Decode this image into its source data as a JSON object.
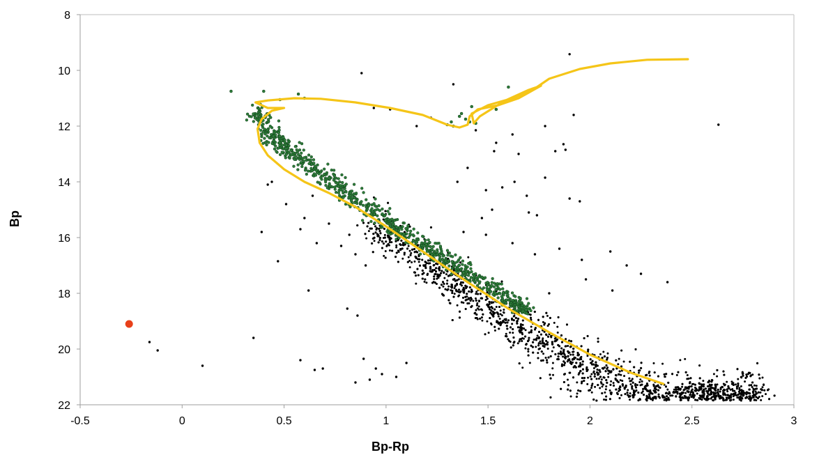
{
  "chart_data": {
    "type": "scatter",
    "title": "",
    "xlabel": "Bp-Rp",
    "ylabel": "Bp",
    "xlim": [
      -0.5,
      3
    ],
    "ylim": [
      8,
      22
    ],
    "y_inverted": true,
    "grid": false,
    "legend": "none",
    "xticks": [
      "-0.5",
      "0",
      "0.5",
      "1",
      "1.5",
      "2",
      "2.5",
      "3"
    ],
    "yticks": [
      "8",
      "10",
      "12",
      "14",
      "16",
      "18",
      "20",
      "22"
    ],
    "colors": {
      "field": "#000000",
      "members": "#2e7d3a",
      "isochrone": "#f5c518",
      "highlight": "#e8401a"
    },
    "series": [
      {
        "kind": "field_stars",
        "points": [
          [
            0.88,
            10.1
          ],
          [
            0.94,
            11.35
          ],
          [
            1.02,
            11.4
          ],
          [
            1.33,
            10.5
          ],
          [
            1.15,
            12.0
          ],
          [
            1.22,
            11.7
          ],
          [
            1.44,
            12.15
          ],
          [
            1.62,
            12.3
          ],
          [
            1.78,
            12.0
          ],
          [
            1.92,
            11.6
          ],
          [
            2.63,
            11.95
          ],
          [
            1.9,
            9.42
          ],
          [
            1.54,
            12.6
          ],
          [
            1.65,
            13.0
          ],
          [
            1.53,
            12.9
          ],
          [
            1.83,
            12.9
          ],
          [
            1.88,
            12.85
          ],
          [
            1.87,
            12.65
          ],
          [
            1.4,
            13.5
          ],
          [
            1.35,
            14.0
          ],
          [
            1.49,
            14.3
          ],
          [
            1.57,
            14.2
          ],
          [
            1.63,
            14.0
          ],
          [
            1.78,
            13.85
          ],
          [
            1.69,
            14.5
          ],
          [
            1.9,
            14.6
          ],
          [
            1.95,
            14.7
          ],
          [
            1.7,
            15.1
          ],
          [
            1.74,
            15.2
          ],
          [
            1.52,
            15.0
          ],
          [
            1.47,
            15.3
          ],
          [
            1.38,
            15.8
          ],
          [
            1.49,
            15.9
          ],
          [
            1.62,
            16.2
          ],
          [
            1.73,
            16.6
          ],
          [
            1.85,
            16.4
          ],
          [
            1.96,
            16.8
          ],
          [
            2.1,
            16.5
          ],
          [
            2.18,
            17.0
          ],
          [
            2.25,
            17.3
          ],
          [
            2.38,
            17.6
          ],
          [
            2.11,
            17.9
          ],
          [
            1.98,
            17.5
          ],
          [
            1.8,
            18.0
          ],
          [
            0.42,
            14.1
          ],
          [
            0.44,
            14.0
          ],
          [
            0.51,
            14.8
          ],
          [
            0.6,
            15.3
          ],
          [
            0.64,
            14.5
          ],
          [
            0.39,
            15.8
          ],
          [
            0.47,
            16.85
          ],
          [
            0.58,
            15.7
          ],
          [
            0.66,
            16.2
          ],
          [
            0.72,
            15.5
          ],
          [
            0.78,
            16.3
          ],
          [
            0.82,
            15.9
          ],
          [
            0.85,
            16.6
          ],
          [
            0.9,
            17.0
          ],
          [
            0.62,
            17.9
          ],
          [
            0.58,
            20.4
          ],
          [
            0.35,
            19.6
          ],
          [
            0.1,
            20.6
          ],
          [
            -0.12,
            20.05
          ],
          [
            -0.16,
            19.75
          ],
          [
            0.65,
            20.75
          ],
          [
            0.69,
            20.7
          ],
          [
            0.81,
            18.55
          ],
          [
            0.86,
            18.8
          ],
          [
            0.89,
            20.35
          ],
          [
            0.92,
            21.1
          ],
          [
            0.95,
            20.7
          ],
          [
            0.98,
            20.9
          ],
          [
            1.05,
            21.0
          ],
          [
            1.1,
            20.5
          ],
          [
            0.85,
            21.2
          ]
        ],
        "main_sequence_region": {
          "x_range": [
            0.85,
            2.85
          ],
          "y_range": [
            14.2,
            21.9
          ],
          "description": "dense band of faint field/cluster stars"
        }
      },
      {
        "kind": "cluster_members",
        "points": [
          [
            0.24,
            10.75
          ],
          [
            0.4,
            10.75
          ],
          [
            0.48,
            11.05
          ],
          [
            0.57,
            10.85
          ],
          [
            0.6,
            11.0
          ],
          [
            1.32,
            11.85
          ],
          [
            1.36,
            11.65
          ],
          [
            1.39,
            11.75
          ],
          [
            1.33,
            12.0
          ],
          [
            1.37,
            11.55
          ],
          [
            1.41,
            11.85
          ],
          [
            1.44,
            11.9
          ],
          [
            1.54,
            11.4
          ],
          [
            1.6,
            10.6
          ],
          [
            1.42,
            11.3
          ],
          [
            1.3,
            11.95
          ]
        ],
        "sequence_band": [
          [
            0.38,
            11.7
          ],
          [
            0.45,
            12.6
          ],
          [
            0.55,
            13.2
          ],
          [
            0.7,
            14.0
          ],
          [
            0.85,
            14.8
          ],
          [
            1.0,
            15.6
          ],
          [
            1.15,
            16.3
          ],
          [
            1.3,
            17.0
          ],
          [
            1.45,
            17.6
          ],
          [
            1.6,
            18.4
          ],
          [
            1.68,
            18.8
          ]
        ]
      },
      {
        "kind": "isochrone",
        "points": [
          [
            2.36,
            21.25
          ],
          [
            2.2,
            20.85
          ],
          [
            2.0,
            20.2
          ],
          [
            1.8,
            19.4
          ],
          [
            1.6,
            18.55
          ],
          [
            1.4,
            17.6
          ],
          [
            1.2,
            16.6
          ],
          [
            1.0,
            15.6
          ],
          [
            0.85,
            14.9
          ],
          [
            0.72,
            14.4
          ],
          [
            0.6,
            14.0
          ],
          [
            0.5,
            13.55
          ],
          [
            0.42,
            13.05
          ],
          [
            0.38,
            12.6
          ],
          [
            0.37,
            12.1
          ],
          [
            0.39,
            11.75
          ],
          [
            0.44,
            11.45
          ],
          [
            0.5,
            11.35
          ],
          [
            0.42,
            11.35
          ],
          [
            0.36,
            11.15
          ],
          [
            0.42,
            11.08
          ],
          [
            0.55,
            11.0
          ],
          [
            0.68,
            11.02
          ],
          [
            0.85,
            11.15
          ],
          [
            1.02,
            11.35
          ],
          [
            1.18,
            11.6
          ],
          [
            1.3,
            11.95
          ],
          [
            1.36,
            12.05
          ],
          [
            1.4,
            11.95
          ],
          [
            1.41,
            11.65
          ],
          [
            1.45,
            11.4
          ],
          [
            1.55,
            11.25
          ],
          [
            1.65,
            11.0
          ],
          [
            1.76,
            10.55
          ],
          [
            1.7,
            10.7
          ],
          [
            1.58,
            11.1
          ],
          [
            1.46,
            11.65
          ],
          [
            1.43,
            11.9
          ],
          [
            1.42,
            11.55
          ],
          [
            1.5,
            11.25
          ],
          [
            1.62,
            11.0
          ],
          [
            1.72,
            10.7
          ],
          [
            1.8,
            10.3
          ],
          [
            1.95,
            9.95
          ],
          [
            2.1,
            9.75
          ],
          [
            2.28,
            9.62
          ],
          [
            2.48,
            9.6
          ]
        ]
      },
      {
        "kind": "highlight",
        "points": [
          [
            -0.26,
            19.1
          ]
        ]
      }
    ]
  }
}
